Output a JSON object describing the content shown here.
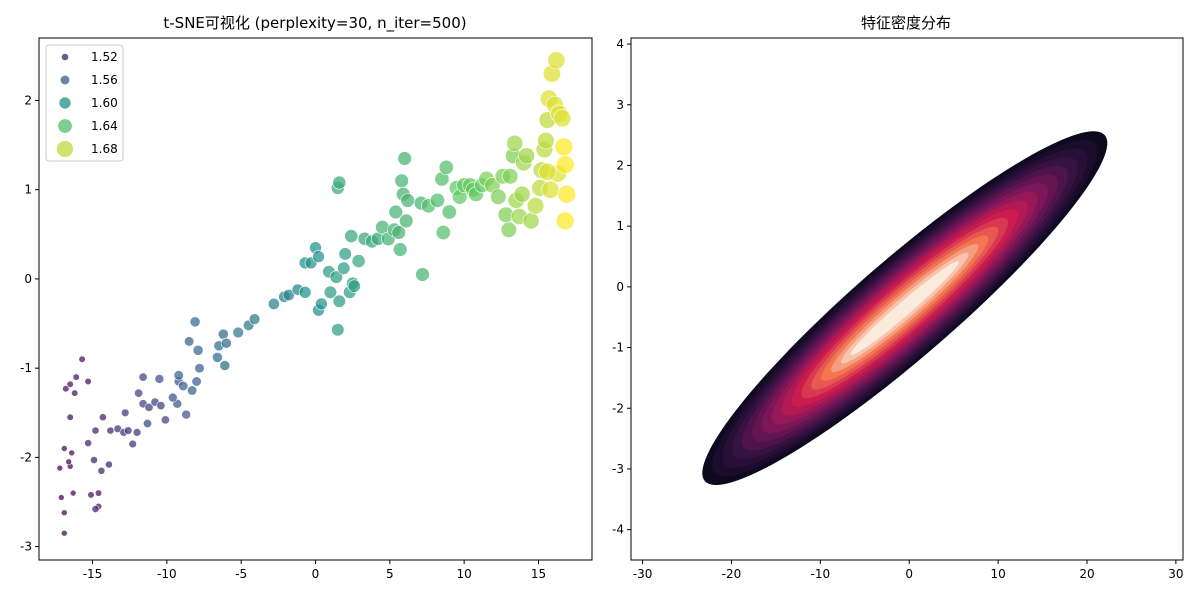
{
  "chart_data": [
    {
      "type": "scatter",
      "title": "t-SNE可视化 (perplexity=30, n_iter=500)",
      "xlabel": "",
      "ylabel": "",
      "xlim": [
        -18.6,
        18.6
      ],
      "ylim": [
        -3.15,
        2.7
      ],
      "xticks": [
        -15,
        -10,
        -5,
        0,
        5,
        10,
        15
      ],
      "yticks": [
        -3,
        -2,
        -1,
        0,
        1,
        2
      ],
      "xtick_labels": [
        "-15",
        "-10",
        "-5",
        "0",
        "5",
        "10",
        "15"
      ],
      "ytick_labels": [
        "-3",
        "-2",
        "-1",
        "0",
        "1",
        "2"
      ],
      "colormap": "viridis",
      "hue_range": [
        1.5,
        1.7
      ],
      "legend": {
        "placement": "top-left",
        "entries": [
          {
            "label": "1.52",
            "value": 1.52
          },
          {
            "label": "1.56",
            "value": 1.56
          },
          {
            "label": "1.60",
            "value": 1.6
          },
          {
            "label": "1.64",
            "value": 1.64
          },
          {
            "label": "1.68",
            "value": 1.68
          }
        ]
      },
      "points": [
        [
          -16.9,
          -2.85,
          1.5
        ],
        [
          -17.1,
          -2.45,
          1.5
        ],
        [
          -16.9,
          -2.62,
          1.5
        ],
        [
          -17.2,
          -2.12,
          1.5
        ],
        [
          -16.5,
          -2.1,
          1.5
        ],
        [
          -16.3,
          -2.4,
          1.5
        ],
        [
          -16.5,
          -1.55,
          1.51
        ],
        [
          -16.9,
          -1.9,
          1.5
        ],
        [
          -16.4,
          -1.95,
          1.5
        ],
        [
          -16.6,
          -2.05,
          1.5
        ],
        [
          -16.2,
          -1.28,
          1.51
        ],
        [
          -16.8,
          -1.23,
          1.51
        ],
        [
          -16.5,
          -1.18,
          1.51
        ],
        [
          -16.1,
          -1.1,
          1.51
        ],
        [
          -15.7,
          -0.9,
          1.51
        ],
        [
          -15.3,
          -1.15,
          1.51
        ],
        [
          -15.1,
          -2.42,
          1.51
        ],
        [
          -14.6,
          -2.4,
          1.51
        ],
        [
          -14.6,
          -2.55,
          1.51
        ],
        [
          -15.3,
          -1.84,
          1.52
        ],
        [
          -14.9,
          -2.03,
          1.52
        ],
        [
          -14.4,
          -2.15,
          1.52
        ],
        [
          -13.9,
          -2.08,
          1.52
        ],
        [
          -14.8,
          -1.7,
          1.52
        ],
        [
          -14.3,
          -1.55,
          1.52
        ],
        [
          -13.8,
          -1.7,
          1.52
        ],
        [
          -14.8,
          -2.58,
          1.52
        ],
        [
          -13.3,
          -1.68,
          1.53
        ],
        [
          -12.9,
          -1.72,
          1.53
        ],
        [
          -12.6,
          -1.7,
          1.53
        ],
        [
          -12.8,
          -1.5,
          1.53
        ],
        [
          -12.0,
          -1.72,
          1.53
        ],
        [
          -12.3,
          -1.85,
          1.53
        ],
        [
          -11.6,
          -1.4,
          1.54
        ],
        [
          -11.2,
          -1.44,
          1.54
        ],
        [
          -11.9,
          -1.28,
          1.54
        ],
        [
          -11.3,
          -1.62,
          1.54
        ],
        [
          -10.8,
          -1.38,
          1.54
        ],
        [
          -10.4,
          -1.42,
          1.54
        ],
        [
          -10.1,
          -1.58,
          1.54
        ],
        [
          -11.6,
          -1.1,
          1.54
        ],
        [
          -10.5,
          -1.12,
          1.55
        ],
        [
          -9.3,
          -1.4,
          1.55
        ],
        [
          -8.7,
          -1.52,
          1.55
        ],
        [
          -9.6,
          -1.33,
          1.55
        ],
        [
          -9.2,
          -1.15,
          1.55
        ],
        [
          -8.9,
          -1.2,
          1.56
        ],
        [
          -9.2,
          -1.08,
          1.56
        ],
        [
          -8.0,
          -1.15,
          1.56
        ],
        [
          -8.3,
          -1.25,
          1.56
        ],
        [
          -8.5,
          -0.7,
          1.56
        ],
        [
          -7.8,
          -1.0,
          1.56
        ],
        [
          -7.9,
          -0.8,
          1.57
        ],
        [
          -8.1,
          -0.48,
          1.57
        ],
        [
          -6.6,
          -0.88,
          1.57
        ],
        [
          -6.5,
          -0.75,
          1.57
        ],
        [
          -6.1,
          -0.97,
          1.57
        ],
        [
          -6.2,
          -0.62,
          1.57
        ],
        [
          -6.0,
          -0.72,
          1.57
        ],
        [
          -5.2,
          -0.6,
          1.58
        ],
        [
          -4.5,
          -0.52,
          1.58
        ],
        [
          -4.1,
          -0.45,
          1.58
        ],
        [
          -2.8,
          -0.28,
          1.59
        ],
        [
          -2.1,
          -0.2,
          1.59
        ],
        [
          -1.8,
          -0.18,
          1.59
        ],
        [
          -1.2,
          -0.12,
          1.59
        ],
        [
          -0.7,
          -0.15,
          1.6
        ],
        [
          -0.7,
          0.18,
          1.6
        ],
        [
          -0.3,
          0.18,
          1.6
        ],
        [
          0.0,
          0.35,
          1.6
        ],
        [
          0.2,
          0.25,
          1.6
        ],
        [
          0.2,
          -0.35,
          1.6
        ],
        [
          0.4,
          -0.28,
          1.6
        ],
        [
          0.9,
          0.08,
          1.61
        ],
        [
          1.0,
          -0.15,
          1.61
        ],
        [
          1.4,
          0.02,
          1.61
        ],
        [
          1.6,
          -0.25,
          1.61
        ],
        [
          1.5,
          -0.57,
          1.61
        ],
        [
          1.5,
          1.02,
          1.62
        ],
        [
          1.6,
          1.08,
          1.62
        ],
        [
          1.9,
          0.12,
          1.61
        ],
        [
          2.0,
          0.28,
          1.61
        ],
        [
          2.3,
          -0.15,
          1.61
        ],
        [
          2.5,
          -0.05,
          1.61
        ],
        [
          2.6,
          -0.08,
          1.61
        ],
        [
          2.4,
          0.48,
          1.62
        ],
        [
          2.9,
          0.2,
          1.62
        ],
        [
          3.3,
          0.45,
          1.62
        ],
        [
          3.8,
          0.42,
          1.62
        ],
        [
          4.2,
          0.45,
          1.62
        ],
        [
          4.5,
          0.58,
          1.63
        ],
        [
          4.9,
          0.45,
          1.63
        ],
        [
          5.3,
          0.55,
          1.63
        ],
        [
          5.4,
          0.75,
          1.63
        ],
        [
          5.6,
          0.52,
          1.63
        ],
        [
          5.7,
          0.33,
          1.63
        ],
        [
          5.9,
          0.95,
          1.63
        ],
        [
          6.0,
          1.35,
          1.63
        ],
        [
          6.1,
          0.65,
          1.63
        ],
        [
          5.8,
          1.1,
          1.63
        ],
        [
          6.2,
          0.88,
          1.63
        ],
        [
          7.1,
          0.85,
          1.63
        ],
        [
          7.2,
          0.05,
          1.63
        ],
        [
          7.6,
          0.82,
          1.64
        ],
        [
          8.2,
          0.88,
          1.64
        ],
        [
          8.5,
          1.12,
          1.64
        ],
        [
          8.8,
          1.25,
          1.64
        ],
        [
          8.6,
          0.52,
          1.64
        ],
        [
          9.0,
          0.75,
          1.64
        ],
        [
          9.5,
          1.02,
          1.65
        ],
        [
          9.7,
          0.92,
          1.65
        ],
        [
          10.0,
          1.05,
          1.65
        ],
        [
          10.4,
          1.05,
          1.65
        ],
        [
          10.6,
          1.0,
          1.65
        ],
        [
          10.8,
          0.95,
          1.65
        ],
        [
          11.2,
          1.05,
          1.65
        ],
        [
          11.5,
          1.12,
          1.66
        ],
        [
          11.9,
          1.05,
          1.66
        ],
        [
          12.3,
          0.92,
          1.66
        ],
        [
          12.6,
          1.15,
          1.66
        ],
        [
          12.8,
          0.72,
          1.66
        ],
        [
          13.0,
          0.55,
          1.66
        ],
        [
          13.1,
          1.15,
          1.66
        ],
        [
          13.3,
          1.38,
          1.66
        ],
        [
          13.4,
          1.52,
          1.67
        ],
        [
          13.5,
          0.88,
          1.67
        ],
        [
          13.7,
          0.7,
          1.67
        ],
        [
          13.9,
          0.95,
          1.67
        ],
        [
          14.0,
          1.3,
          1.67
        ],
        [
          14.2,
          1.38,
          1.67
        ],
        [
          14.5,
          0.65,
          1.67
        ],
        [
          14.8,
          0.82,
          1.68
        ],
        [
          15.1,
          1.02,
          1.68
        ],
        [
          15.2,
          1.22,
          1.68
        ],
        [
          15.4,
          1.45,
          1.68
        ],
        [
          15.5,
          1.55,
          1.68
        ],
        [
          15.6,
          1.78,
          1.68
        ],
        [
          15.7,
          2.02,
          1.69
        ],
        [
          15.9,
          2.3,
          1.69
        ],
        [
          16.1,
          1.95,
          1.69
        ],
        [
          16.2,
          2.45,
          1.69
        ],
        [
          16.3,
          1.18,
          1.69
        ],
        [
          16.4,
          1.85,
          1.69
        ],
        [
          16.6,
          1.8,
          1.69
        ],
        [
          16.7,
          1.48,
          1.7
        ],
        [
          16.8,
          1.28,
          1.7
        ],
        [
          16.9,
          0.95,
          1.7
        ],
        [
          16.8,
          0.65,
          1.7
        ],
        [
          15.6,
          1.2,
          1.69
        ],
        [
          15.8,
          1.0,
          1.69
        ]
      ]
    },
    {
      "type": "density",
      "title": "特征密度分布",
      "xlabel": "",
      "ylabel": "",
      "xlim": [
        -31.3,
        30.8
      ],
      "ylim": [
        -4.5,
        4.1
      ],
      "xticks": [
        -30,
        -20,
        -10,
        0,
        10,
        20,
        30
      ],
      "yticks": [
        -4,
        -3,
        -2,
        -1,
        0,
        1,
        2,
        3,
        4
      ],
      "xtick_labels": [
        "-30",
        "-20",
        "-10",
        "0",
        "10",
        "20",
        "30"
      ],
      "ytick_labels": [
        "-4",
        "-3",
        "-2",
        "-1",
        "0",
        "1",
        "2",
        "3",
        "4"
      ],
      "colormap": "rocket",
      "center": [
        0,
        0
      ],
      "slope": 0.115,
      "x_extent": [
        -23,
        22
      ],
      "y_extent": [
        -3.2,
        2.5
      ]
    }
  ]
}
